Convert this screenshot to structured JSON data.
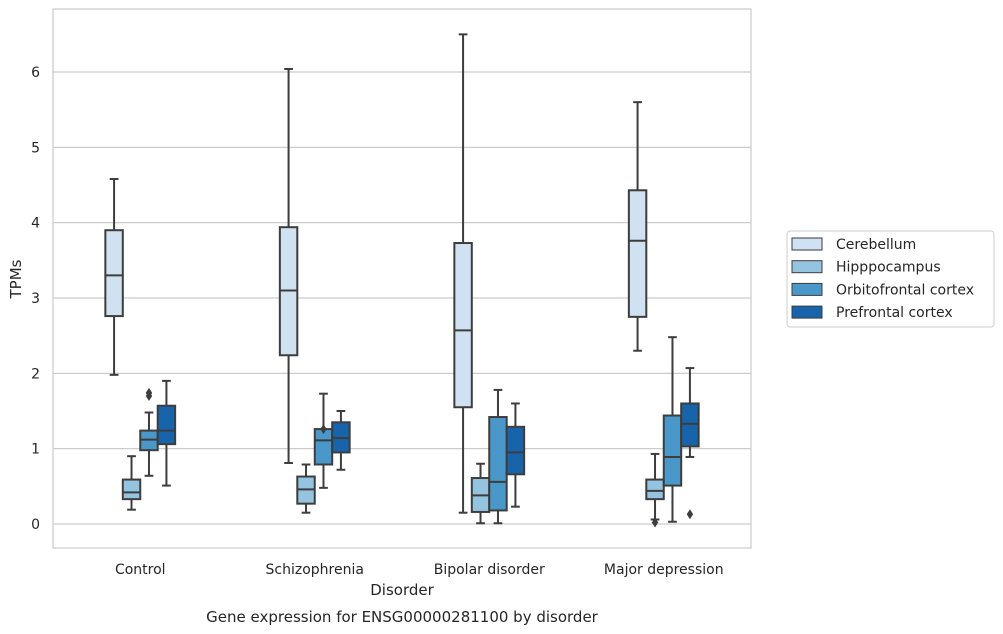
{
  "chart_data": {
    "type": "boxplot",
    "caption": "Gene expression for ENSG00000281100 by disorder",
    "xlabel": "Disorder",
    "ylabel": "TPMs",
    "ylim": [
      -0.32,
      6.85
    ],
    "yticks": [
      0,
      1,
      2,
      3,
      4,
      5,
      6
    ],
    "grid": "horizontal",
    "legend_position": "right",
    "categories": [
      "Control",
      "Schizophrenia",
      "Bipolar disorder",
      "Major depression"
    ],
    "series": [
      {
        "name": "Cerebellum",
        "color": "#d0e1f2",
        "boxes": [
          {
            "whislo": 1.98,
            "q1": 2.76,
            "med": 3.3,
            "q3": 3.9,
            "whishi": 4.58,
            "fliers": []
          },
          {
            "whislo": 0.81,
            "q1": 2.24,
            "med": 3.1,
            "q3": 3.94,
            "whishi": 6.04,
            "fliers": []
          },
          {
            "whislo": 0.15,
            "q1": 1.55,
            "med": 2.57,
            "q3": 3.73,
            "whishi": 6.5,
            "fliers": []
          },
          {
            "whislo": 2.3,
            "q1": 2.75,
            "med": 3.76,
            "q3": 4.43,
            "whishi": 5.6,
            "fliers": []
          }
        ]
      },
      {
        "name": "Hipppocampus",
        "color": "#94c4df",
        "boxes": [
          {
            "whislo": 0.19,
            "q1": 0.33,
            "med": 0.42,
            "q3": 0.59,
            "whishi": 0.9,
            "fliers": []
          },
          {
            "whislo": 0.15,
            "q1": 0.27,
            "med": 0.46,
            "q3": 0.63,
            "whishi": 0.79,
            "fliers": []
          },
          {
            "whislo": 0.01,
            "q1": 0.16,
            "med": 0.38,
            "q3": 0.61,
            "whishi": 0.8,
            "fliers": []
          },
          {
            "whislo": 0.06,
            "q1": 0.33,
            "med": 0.44,
            "q3": 0.59,
            "whishi": 0.93,
            "fliers": [
              0.02
            ]
          }
        ]
      },
      {
        "name": "Orbitofrontal cortex",
        "color": "#4a98c9",
        "boxes": [
          {
            "whislo": 0.64,
            "q1": 0.98,
            "med": 1.12,
            "q3": 1.24,
            "whishi": 1.48,
            "fliers": [
              1.7,
              1.74
            ]
          },
          {
            "whislo": 0.48,
            "q1": 0.79,
            "med": 1.11,
            "q3": 1.26,
            "whishi": 1.73,
            "fliers": [
              1.26
            ]
          },
          {
            "whislo": 0.01,
            "q1": 0.18,
            "med": 0.56,
            "q3": 1.42,
            "whishi": 1.78,
            "fliers": []
          },
          {
            "whislo": 0.03,
            "q1": 0.51,
            "med": 0.89,
            "q3": 1.44,
            "whishi": 2.48,
            "fliers": []
          }
        ]
      },
      {
        "name": "Prefrontal cortex",
        "color": "#1764ab",
        "boxes": [
          {
            "whislo": 0.51,
            "q1": 1.06,
            "med": 1.24,
            "q3": 1.57,
            "whishi": 1.9,
            "fliers": []
          },
          {
            "whislo": 0.72,
            "q1": 0.95,
            "med": 1.14,
            "q3": 1.35,
            "whishi": 1.5,
            "fliers": []
          },
          {
            "whislo": 0.23,
            "q1": 0.66,
            "med": 0.95,
            "q3": 1.29,
            "whishi": 1.6,
            "fliers": []
          },
          {
            "whislo": 0.89,
            "q1": 1.03,
            "med": 1.33,
            "q3": 1.6,
            "whishi": 2.07,
            "fliers": [
              0.13
            ]
          }
        ]
      }
    ]
  }
}
